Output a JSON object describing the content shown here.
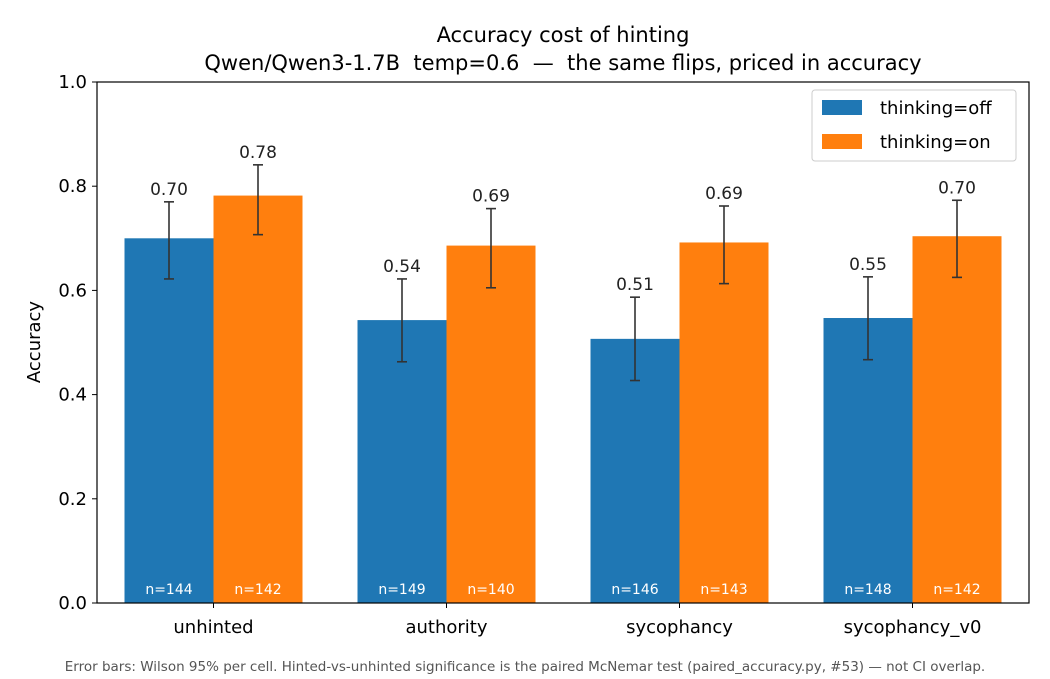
{
  "chart_data": {
    "type": "bar",
    "title": "Accuracy cost of hinting",
    "subtitle": "Qwen/Qwen3-1.7B  temp=0.6  —  the same flips, priced in accuracy",
    "xlabel": "",
    "ylabel": "Accuracy",
    "ylim": [
      0,
      1.0
    ],
    "yticks": [
      0.0,
      0.2,
      0.4,
      0.6,
      0.8,
      1.0
    ],
    "ytick_labels": [
      "0.0",
      "0.2",
      "0.4",
      "0.6",
      "0.8",
      "1.0"
    ],
    "categories": [
      "unhinted",
      "authority",
      "sycophancy",
      "sycophancy_v0"
    ],
    "legend_position": "top-right",
    "grid": false,
    "series": [
      {
        "name": "thinking=off",
        "color": "#1f77b4",
        "values": [
          0.7,
          0.543,
          0.507,
          0.547
        ],
        "value_labels": [
          "0.70",
          "0.54",
          "0.51",
          "0.55"
        ],
        "ci_low": [
          0.622,
          0.463,
          0.427,
          0.467
        ],
        "ci_high": [
          0.77,
          0.622,
          0.587,
          0.626
        ],
        "n_labels": [
          "n=144",
          "n=149",
          "n=146",
          "n=148"
        ]
      },
      {
        "name": "thinking=on",
        "color": "#ff7f0e",
        "values": [
          0.782,
          0.686,
          0.692,
          0.704
        ],
        "value_labels": [
          "0.78",
          "0.69",
          "0.69",
          "0.70"
        ],
        "ci_low": [
          0.707,
          0.605,
          0.613,
          0.625
        ],
        "ci_high": [
          0.841,
          0.757,
          0.762,
          0.773
        ],
        "n_labels": [
          "n=142",
          "n=140",
          "n=143",
          "n=142"
        ]
      }
    ],
    "footnote": "Error bars: Wilson 95% per cell. Hinted-vs-unhinted significance is the paired McNemar test (paired_accuracy.py, #53) — not CI overlap."
  }
}
